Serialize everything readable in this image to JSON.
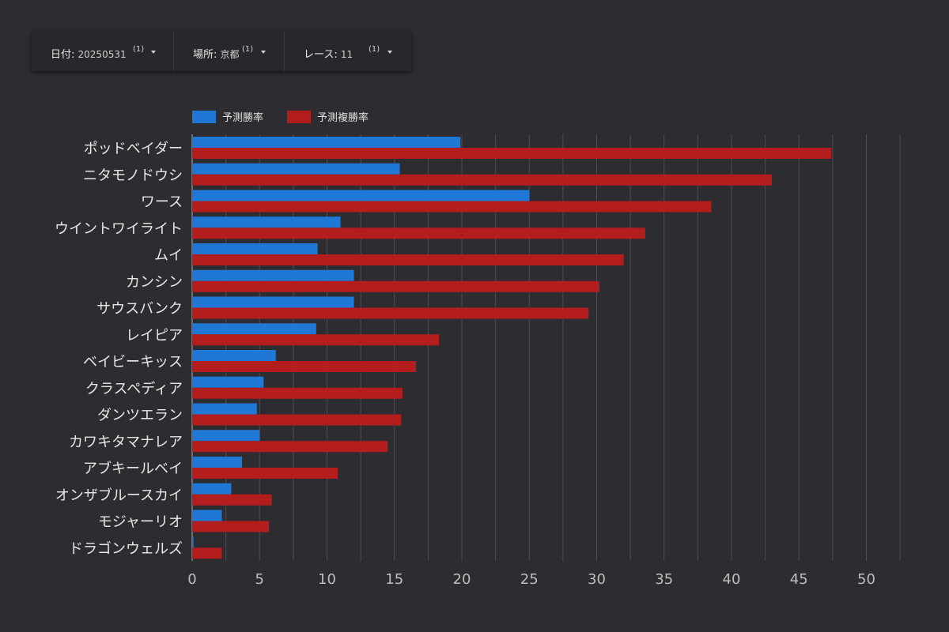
{
  "filters": [
    {
      "label": "日付",
      "value": "20250531",
      "count": "(1)"
    },
    {
      "label": "場所",
      "value": "京都",
      "count": "(1)"
    },
    {
      "label": "レース",
      "value": "11",
      "count": "(1)"
    }
  ],
  "colors": {
    "win": "#1f78d6",
    "place": "#b31d1d",
    "grid": "#4e4d53",
    "background": "#2d2c31"
  },
  "chart_data": {
    "type": "bar",
    "orientation": "horizontal",
    "categories": [
      "ポッドベイダー",
      "ニタモノドウシ",
      "ワース",
      "ウイントワイライト",
      "ムイ",
      "カンシン",
      "サウスバンク",
      "レイピア",
      "ベイビーキッス",
      "クラスペディア",
      "ダンツエラン",
      "カワキタマナレア",
      "アブキールベイ",
      "オンザブルースカイ",
      "モジャーリオ",
      "ドラゴンウェルズ"
    ],
    "series": [
      {
        "name": "予測勝率",
        "values": [
          19.9,
          15.4,
          25.0,
          11.0,
          9.3,
          12.0,
          12.0,
          9.2,
          6.2,
          5.3,
          4.8,
          5.0,
          3.7,
          2.9,
          2.2,
          0.1
        ]
      },
      {
        "name": "予測複勝率",
        "values": [
          47.4,
          43.0,
          38.5,
          33.6,
          32.0,
          30.2,
          29.4,
          18.3,
          16.6,
          15.6,
          15.5,
          14.5,
          10.8,
          5.9,
          5.7,
          2.2
        ]
      }
    ],
    "xticks": [
      "0",
      "5",
      "10",
      "15",
      "20",
      "25",
      "30",
      "35",
      "40",
      "45",
      "50"
    ],
    "xlim": [
      0,
      52.5
    ],
    "grid": true,
    "legend": "top-left"
  }
}
